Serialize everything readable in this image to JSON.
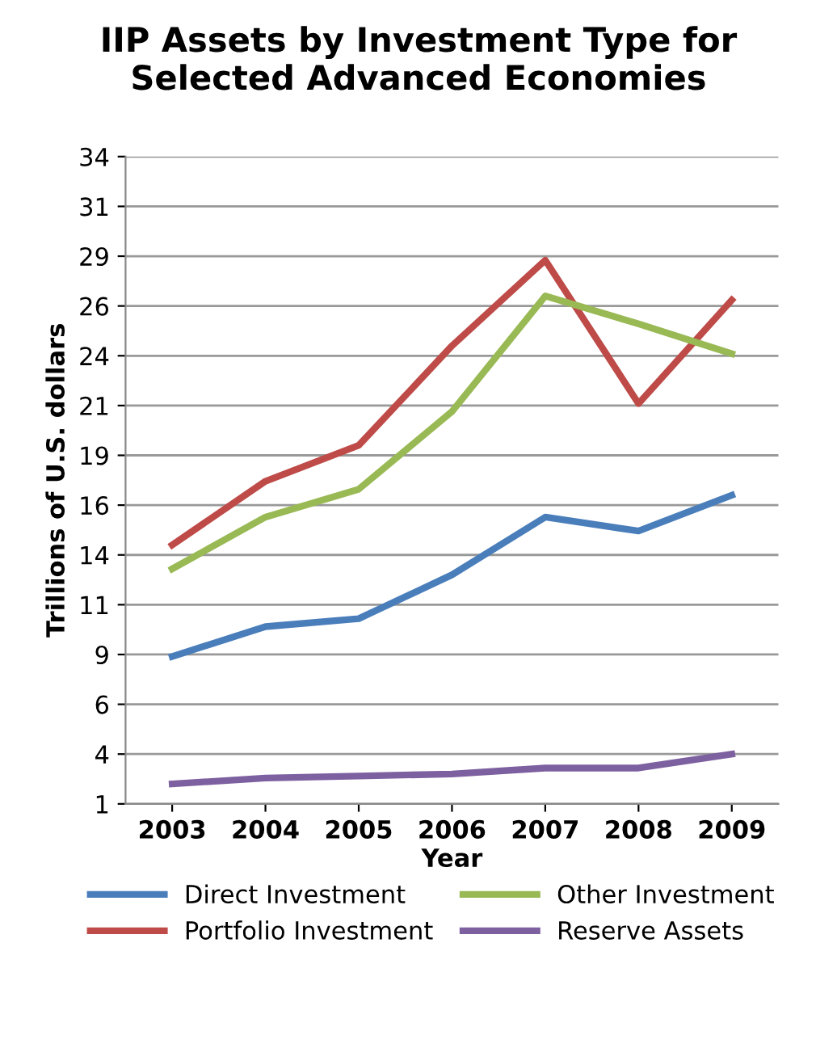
{
  "chart_data": {
    "type": "line",
    "title": "IIP Assets by Investment Type for\nSelected Advanced Economies",
    "xlabel": "Year",
    "ylabel": "Trillions of U.S. dollars",
    "categories": [
      "2003",
      "2004",
      "2005",
      "2006",
      "2007",
      "2008",
      "2009"
    ],
    "series": [
      {
        "name": "Direct Investment",
        "color": "#4a7ebb",
        "values": [
          8.4,
          9.9,
          10.3,
          12.5,
          15.4,
          14.7,
          16.5
        ]
      },
      {
        "name": "Portfolio Investment",
        "color": "#be4b48",
        "values": [
          14.0,
          17.2,
          19.0,
          24.0,
          28.3,
          21.1,
          26.3
        ]
      },
      {
        "name": "Other Investment",
        "color": "#98b954",
        "values": [
          12.8,
          15.4,
          16.8,
          20.7,
          26.5,
          25.1,
          23.6
        ]
      },
      {
        "name": "Reserve Assets",
        "color": "#7d60a0",
        "values": [
          2.0,
          2.3,
          2.4,
          2.5,
          2.8,
          2.8,
          3.5
        ]
      }
    ],
    "ylim": [
      1,
      33.5
    ],
    "yticks": [
      1,
      {
        "value": 3.5,
        "label": "4"
      },
      6,
      {
        "value": 8.5,
        "label": "9"
      },
      11,
      {
        "value": 13.5,
        "label": "14"
      },
      16,
      {
        "value": 18.5,
        "label": "19"
      },
      21,
      {
        "value": 23.5,
        "label": "24"
      },
      26,
      {
        "value": 28.5,
        "label": "29"
      },
      31,
      {
        "value": 33.5,
        "label": "34"
      }
    ],
    "grid": "y",
    "legend": "bottom",
    "marker": "none",
    "line_style": "solid"
  }
}
